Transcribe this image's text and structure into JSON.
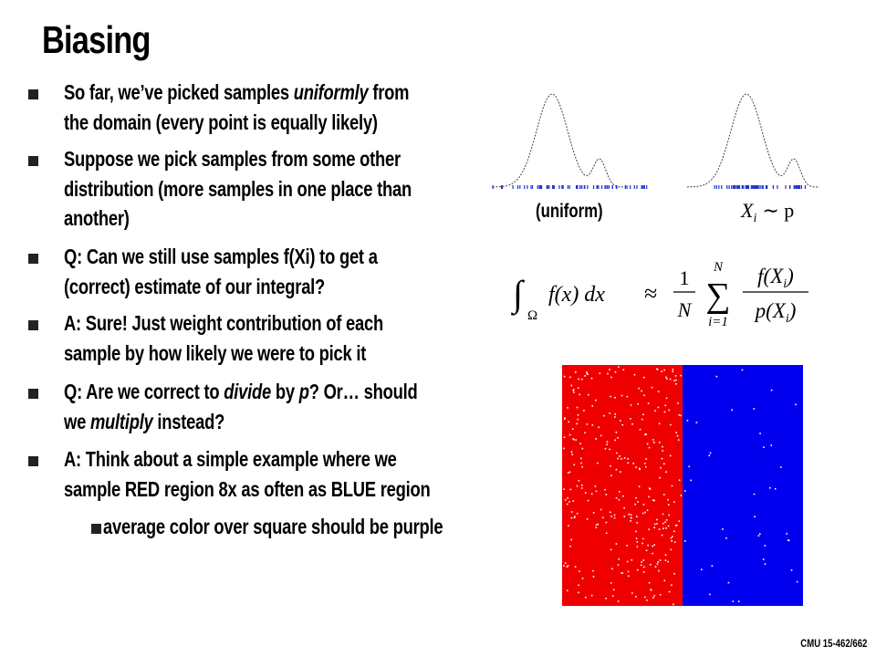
{
  "title": "Biasing",
  "bullets": [
    [
      [
        "So far, we’ve picked samples ",
        "uniformly",
        " from"
      ],
      [
        "the domain (every point is equally likely)"
      ]
    ],
    [
      [
        "Suppose we pick samples from some other"
      ],
      [
        "distribution (more samples in one place than"
      ],
      [
        "another)"
      ]
    ],
    [
      [
        "Q: Can we still use samples f(Xi) to get a"
      ],
      [
        "(correct) estimate of our integral?"
      ]
    ],
    [
      [
        "A: Sure!  Just weight contribution of each"
      ],
      [
        "sample by how likely we were to pick it"
      ]
    ],
    [
      [
        "Q: Are we correct to ",
        "divide",
        " by ",
        "p",
        "?  Or… should"
      ],
      [
        "we ",
        "multiply",
        " instead?"
      ]
    ],
    [
      [
        "A: Think about a simple example where we"
      ],
      [
        "sample RED region 8x as often as BLUE region"
      ]
    ]
  ],
  "sub_bullets": [
    [
      [
        "average color over square should be purple"
      ]
    ]
  ],
  "uniform_label": "(uniform)",
  "xi_label": [
    "X",
    "i",
    "∼ p"
  ],
  "formula": {
    "integral": "∫",
    "domain": "Ω",
    "integrand": "f(x) dx",
    "approx": "≈",
    "frac_num": "1",
    "frac_den": "N",
    "sum": "∑",
    "sum_upper": "N",
    "sum_lower": "i=1",
    "num": [
      "f(X",
      "i",
      ")"
    ],
    "den": [
      "p(X",
      "i",
      ")"
    ]
  },
  "footer": "CMU 15-462/662"
}
